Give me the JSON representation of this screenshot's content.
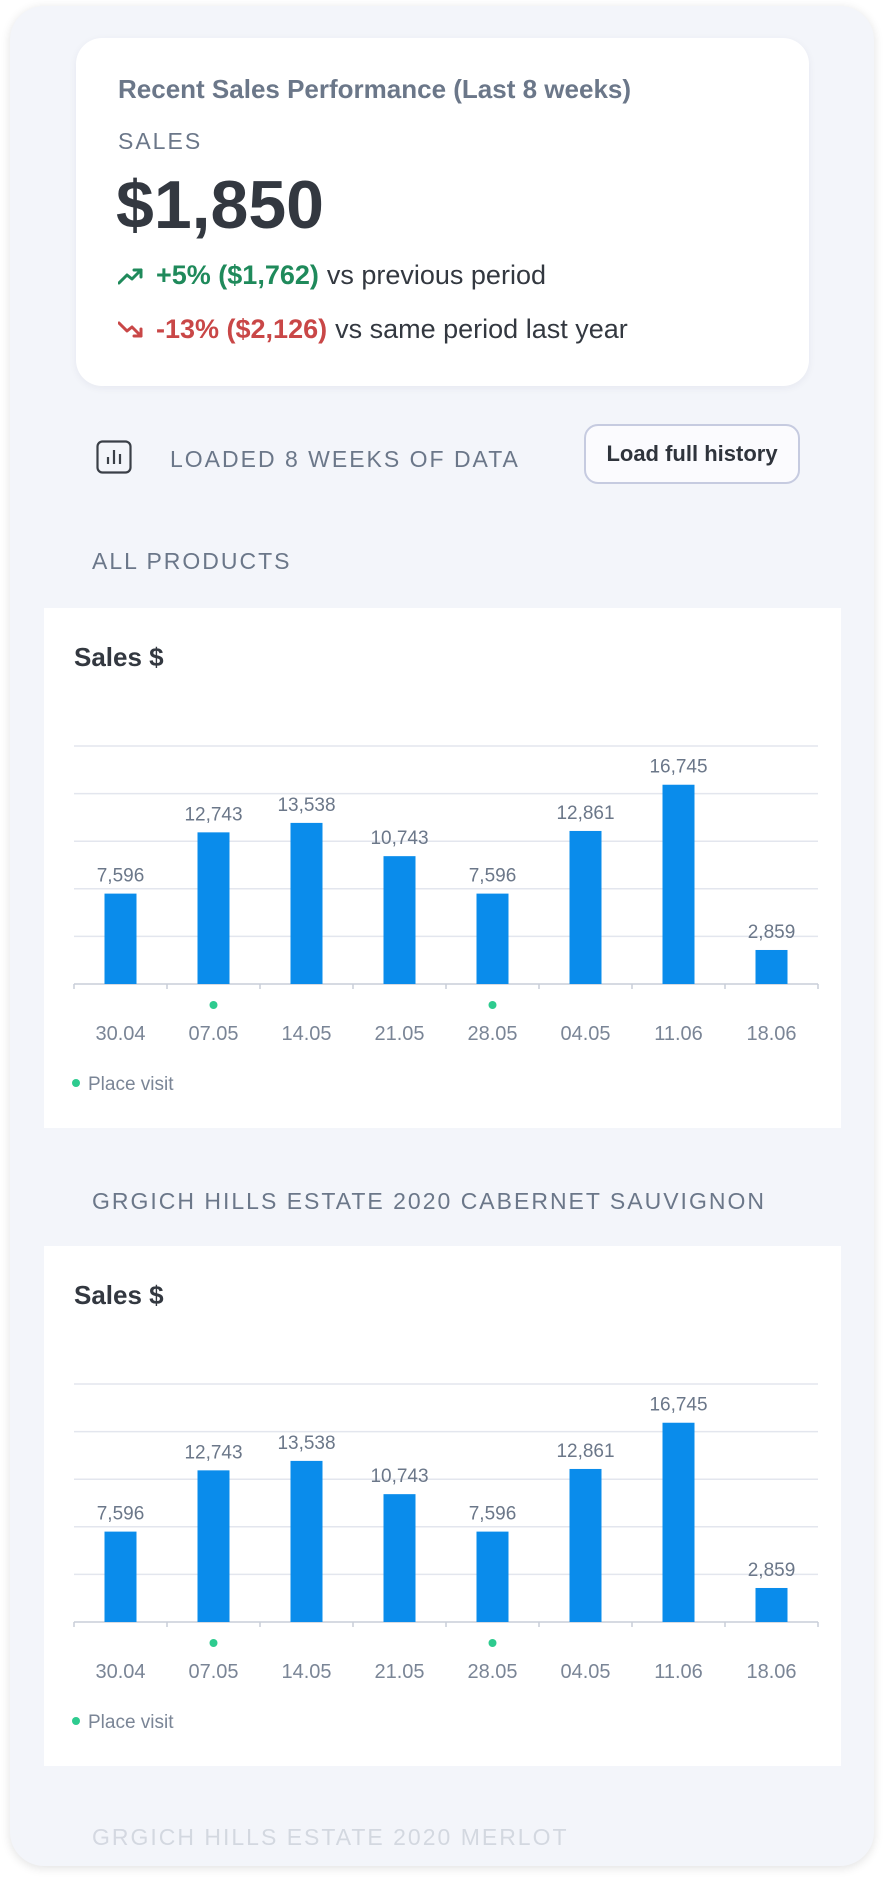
{
  "summary": {
    "title": "Recent Sales Performance (Last 8 weeks)",
    "label": "SALES",
    "value": "$1,850",
    "vs_previous": {
      "delta": "+5% ($1,762)",
      "text": "vs previous period",
      "color": "#1f8a5b",
      "icon": "trend-up-icon"
    },
    "vs_last_year": {
      "delta": "-13% ($2,126)",
      "text": "vs same period last year",
      "color": "#c94747",
      "icon": "trend-down-icon"
    }
  },
  "data_status": {
    "text": "LOADED 8 WEEKS OF DATA",
    "icon": "bar-chart-icon",
    "button_label": "Load full history"
  },
  "sections": [
    {
      "label": "ALL PRODUCTS"
    },
    {
      "label": "GRGICH HILLS ESTATE 2020 CABERNET SAUVIGNON"
    },
    {
      "label": "GRGICH HILLS ESTATE 2020 MERLOT"
    }
  ],
  "chart_data": [
    {
      "type": "bar",
      "title": "Sales $",
      "categories": [
        "30.04",
        "07.05",
        "14.05",
        "21.05",
        "28.05",
        "04.05",
        "11.06",
        "18.06"
      ],
      "values": [
        7596,
        12743,
        13538,
        10743,
        7596,
        12861,
        16745,
        2859
      ],
      "value_labels": [
        "7,596",
        "12,743",
        "13,538",
        "10,743",
        "7,596",
        "12,861",
        "16,745",
        "2,859"
      ],
      "ylim": [
        0,
        20000
      ],
      "grid": true,
      "bar_color": "#0a8ceb",
      "markers": {
        "label": "Place visit",
        "categories": [
          "07.05",
          "28.05"
        ],
        "color": "#2ecb8f"
      }
    },
    {
      "type": "bar",
      "title": "Sales $",
      "categories": [
        "30.04",
        "07.05",
        "14.05",
        "21.05",
        "28.05",
        "04.05",
        "11.06",
        "18.06"
      ],
      "values": [
        7596,
        12743,
        13538,
        10743,
        7596,
        12861,
        16745,
        2859
      ],
      "value_labels": [
        "7,596",
        "12,743",
        "13,538",
        "10,743",
        "7,596",
        "12,861",
        "16,745",
        "2,859"
      ],
      "ylim": [
        0,
        20000
      ],
      "grid": true,
      "bar_color": "#0a8ceb",
      "markers": {
        "label": "Place visit",
        "categories": [
          "07.05",
          "28.05"
        ],
        "color": "#2ecb8f"
      }
    }
  ]
}
